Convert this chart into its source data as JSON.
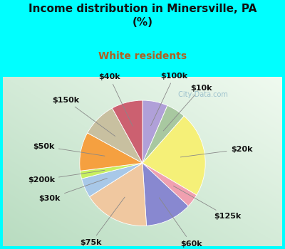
{
  "title": "Income distribution in Minersville, PA\n(%)",
  "subtitle": "White residents",
  "title_color": "#111111",
  "subtitle_color": "#b06020",
  "background_cyan": "#00ffff",
  "chart_bg_color1": "#f0faf0",
  "chart_bg_color2": "#c8e8d0",
  "labels": [
    "$100k",
    "$10k",
    "$20k",
    "$125k",
    "$60k",
    "$75k",
    "$30k",
    "$200k",
    "$50k",
    "$150k",
    "$40k"
  ],
  "sizes": [
    6.5,
    5.0,
    22.0,
    3.5,
    12.0,
    17.0,
    5.0,
    2.0,
    10.0,
    9.0,
    8.0
  ],
  "colors": [
    "#b0a0d8",
    "#a8c8a0",
    "#f5f078",
    "#f0a0b0",
    "#8888d0",
    "#f0c8a0",
    "#a8c8e8",
    "#c8f060",
    "#f5a040",
    "#c8c0a0",
    "#cc6070"
  ],
  "label_color": "#111111",
  "label_fontsize": 8,
  "watermark": " City-Data.com",
  "watermark_color": "#90b8c8",
  "title_fontsize": 11,
  "subtitle_fontsize": 10
}
